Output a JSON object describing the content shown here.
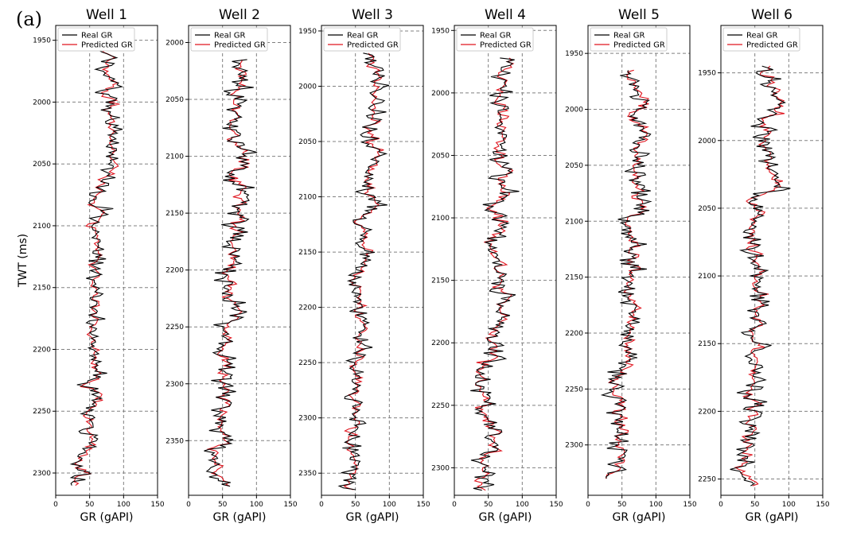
{
  "figure": {
    "panel_label": "(a)"
  },
  "colors": {
    "real": "#000000",
    "predicted": "#e0141e",
    "grid": "#808080"
  },
  "chart_data": [
    {
      "type": "line",
      "title": "Well 1",
      "xlabel": "GR (gAPI)",
      "ylabel": "TWT (ms)",
      "xlim": [
        0,
        150
      ],
      "ylim": [
        2318,
        1938
      ],
      "y_inverted": true,
      "grid": true,
      "legend": "top-left",
      "xticks": [
        0,
        50,
        100,
        150
      ],
      "yticks": [
        1950,
        2000,
        2050,
        2100,
        2150,
        2200,
        2250,
        2300
      ],
      "y_start": 1950,
      "y_end": 2310,
      "mean_start": 88,
      "mean_end": 35,
      "amplitude": 18,
      "seed": 11,
      "series": [
        {
          "name": "Real GR",
          "color": "#000000"
        },
        {
          "name": "Predicted GR",
          "color": "#e0141e"
        }
      ]
    },
    {
      "type": "line",
      "title": "Well 2",
      "xlabel": "GR (gAPI)",
      "ylabel": "",
      "xlim": [
        0,
        150
      ],
      "ylim": [
        2398,
        1985
      ],
      "y_inverted": true,
      "grid": true,
      "legend": "top-left",
      "xticks": [
        0,
        50,
        100,
        150
      ],
      "yticks": [
        2000,
        2050,
        2100,
        2150,
        2200,
        2250,
        2300,
        2350
      ],
      "y_start": 2015,
      "y_end": 2390,
      "mean_start": 82,
      "mean_end": 45,
      "amplitude": 20,
      "seed": 23,
      "series": [
        {
          "name": "Real GR",
          "color": "#000000"
        },
        {
          "name": "Predicted GR",
          "color": "#e0141e"
        }
      ]
    },
    {
      "type": "line",
      "title": "Well 3",
      "xlabel": "GR (gAPI)",
      "ylabel": "",
      "xlim": [
        0,
        150
      ],
      "ylim": [
        2370,
        1945
      ],
      "y_inverted": true,
      "grid": true,
      "legend": "top-left",
      "xticks": [
        0,
        50,
        100,
        150
      ],
      "yticks": [
        1950,
        2000,
        2050,
        2100,
        2150,
        2200,
        2250,
        2300,
        2350
      ],
      "y_start": 1970,
      "y_end": 2365,
      "mean_start": 78,
      "mean_end": 45,
      "amplitude": 18,
      "seed": 37,
      "series": [
        {
          "name": "Real GR",
          "color": "#000000"
        },
        {
          "name": "Predicted GR",
          "color": "#e0141e"
        }
      ]
    },
    {
      "type": "line",
      "title": "Well 4",
      "xlabel": "GR (gAPI)",
      "ylabel": "",
      "xlim": [
        0,
        150
      ],
      "ylim": [
        2322,
        1946
      ],
      "y_inverted": true,
      "grid": true,
      "legend": "top-left",
      "xticks": [
        0,
        50,
        100,
        150
      ],
      "yticks": [
        1950,
        2000,
        2050,
        2100,
        2150,
        2200,
        2250,
        2300
      ],
      "y_start": 1972,
      "y_end": 2318,
      "mean_start": 75,
      "mean_end": 42,
      "amplitude": 20,
      "seed": 41,
      "series": [
        {
          "name": "Real GR",
          "color": "#000000"
        },
        {
          "name": "Predicted GR",
          "color": "#e0141e"
        }
      ]
    },
    {
      "type": "line",
      "title": "Well 5",
      "xlabel": "GR (gAPI)",
      "ylabel": "",
      "xlim": [
        0,
        150
      ],
      "ylim": [
        2345,
        1925
      ],
      "y_inverted": true,
      "grid": true,
      "legend": "top-left",
      "xticks": [
        0,
        50,
        100,
        150
      ],
      "yticks": [
        1950,
        2000,
        2050,
        2100,
        2150,
        2200,
        2250,
        2300
      ],
      "y_start": 1965,
      "y_end": 2330,
      "mean_start": 75,
      "mean_end": 45,
      "amplitude": 20,
      "seed": 53,
      "series": [
        {
          "name": "Real GR",
          "color": "#000000"
        },
        {
          "name": "Predicted GR",
          "color": "#e0141e"
        }
      ]
    },
    {
      "type": "line",
      "title": "Well 6",
      "xlabel": "GR (gAPI)",
      "ylabel": "",
      "xlim": [
        0,
        150
      ],
      "ylim": [
        2262,
        1915
      ],
      "y_inverted": true,
      "grid": true,
      "legend": "top-left",
      "xticks": [
        0,
        50,
        100,
        150
      ],
      "yticks": [
        1950,
        2000,
        2050,
        2100,
        2150,
        2200,
        2250
      ],
      "y_start": 1945,
      "y_end": 2255,
      "mean_start": 78,
      "mean_end": 40,
      "amplitude": 20,
      "seed": 67,
      "series": [
        {
          "name": "Real GR",
          "color": "#000000"
        },
        {
          "name": "Predicted GR",
          "color": "#e0141e"
        }
      ]
    }
  ]
}
